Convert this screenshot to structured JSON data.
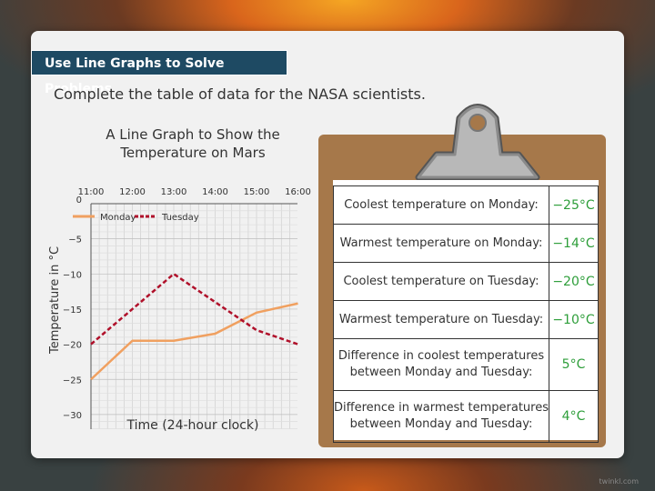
{
  "header": {
    "title": "Use Line Graphs to Solve Problems",
    "instruction": "Complete the table of data for the NASA scientists."
  },
  "chart_data": {
    "type": "line",
    "title": "A Line Graph to Show the Temperature on Mars",
    "xlabel": "Time (24-hour clock)",
    "ylabel": "Temperature in °C",
    "categories": [
      "11:00",
      "12:00",
      "13:00",
      "14:00",
      "15:00",
      "16:00"
    ],
    "y_ticks": [
      "0",
      "−5",
      "−10",
      "−15",
      "−20",
      "−25",
      "−30"
    ],
    "ylim": [
      -30,
      0
    ],
    "grid": true,
    "legend": "top",
    "series": [
      {
        "name": "Monday",
        "color": "#f0a060",
        "style": "solid",
        "x": [
          "11:00",
          "12:00",
          "13:00",
          "14:00",
          "15:00",
          "16:00"
        ],
        "values": [
          -25,
          -19.5,
          -19.5,
          -18.5,
          -15.5,
          -14.2
        ]
      },
      {
        "name": "Tuesday",
        "color": "#b0102a",
        "style": "dashed",
        "x": [
          "11:00",
          "13:00",
          "15:00",
          "16:00"
        ],
        "values": [
          -20,
          -10,
          -18,
          -20
        ]
      }
    ]
  },
  "table": {
    "rows": [
      {
        "question": "Coolest temperature on Monday:",
        "answer": "−25°C"
      },
      {
        "question": "Warmest temperature on Monday:",
        "answer": "−14°C"
      },
      {
        "question": "Coolest temperature on Tuesday:",
        "answer": "−20°C"
      },
      {
        "question": "Warmest temperature on Tuesday:",
        "answer": "−10°C"
      },
      {
        "question": "Difference in coolest temperatures between Monday and Tuesday:",
        "answer": "5°C"
      },
      {
        "question": "Difference in warmest temperatures between Monday and Tuesday:",
        "answer": "4°C"
      }
    ],
    "answer_color": "#2e9e3a"
  },
  "watermark": "twinkl.com"
}
